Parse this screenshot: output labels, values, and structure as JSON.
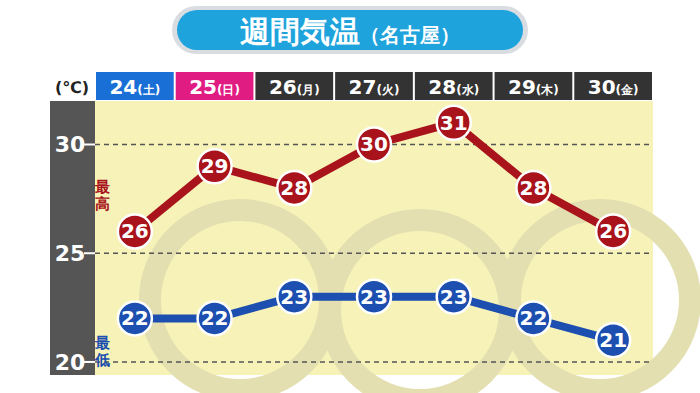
{
  "chart_data": {
    "type": "line",
    "title": "週間気温（名古屋）",
    "y_label": "(℃)",
    "categories": [
      "24(土)",
      "25(日)",
      "26(月)",
      "27(火)",
      "28(水)",
      "29(木)",
      "30(金)"
    ],
    "series": [
      {
        "name": "最高",
        "color": "#a8131c",
        "values": [
          26,
          29,
          28,
          30,
          31,
          28,
          26
        ]
      },
      {
        "name": "最低",
        "color": "#1c4fb0",
        "values": [
          22,
          22,
          23,
          23,
          23,
          22,
          21
        ]
      }
    ],
    "ylim": [
      19.4,
      32
    ],
    "yticks": [
      20,
      25,
      30
    ],
    "grid": true,
    "data_labels": true,
    "marker": "circle"
  }
}
